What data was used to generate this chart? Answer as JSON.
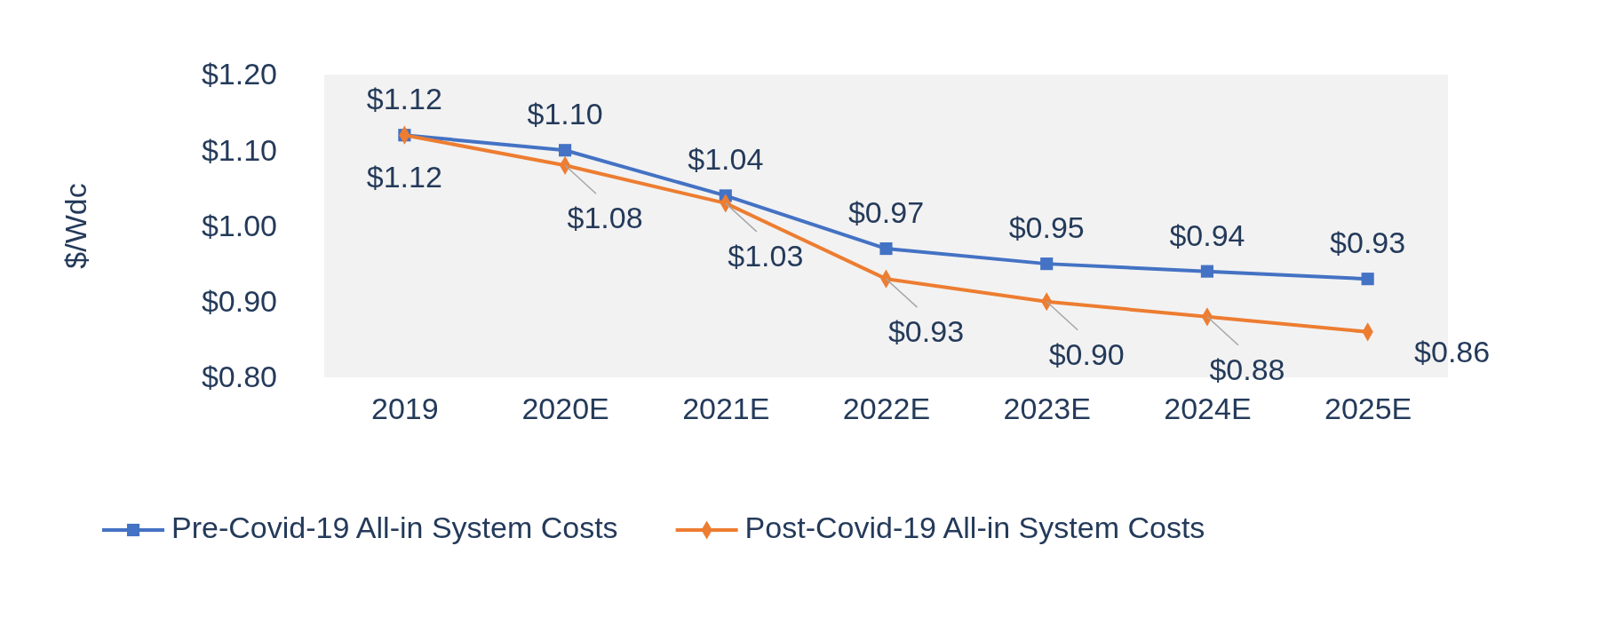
{
  "chart_data": {
    "type": "line",
    "ylabel": "$/Wdc",
    "categories": [
      "2019",
      "2020E",
      "2021E",
      "2022E",
      "2023E",
      "2024E",
      "2025E"
    ],
    "series": [
      {
        "name": "Pre-Covid-19 All-in System Costs",
        "color": "#4472c4",
        "marker": "square",
        "values": [
          1.12,
          1.1,
          1.04,
          0.97,
          0.95,
          0.94,
          0.93
        ],
        "value_labels": [
          "$1.12",
          "$1.10",
          "$1.04",
          "$0.97",
          "$0.95",
          "$0.94",
          "$0.93"
        ]
      },
      {
        "name": "Post-Covid-19 All-in System Costs",
        "color": "#ed7d31",
        "marker": "diamond",
        "values": [
          1.12,
          1.08,
          1.03,
          0.93,
          0.9,
          0.88,
          0.86
        ],
        "value_labels": [
          "$1.12",
          "$1.08",
          "$1.03",
          "$0.93",
          "$0.90",
          "$0.88",
          "$0.86"
        ]
      }
    ],
    "ylim": [
      0.8,
      1.2
    ],
    "yticks": [
      {
        "value": 0.8,
        "label": "$0.80"
      },
      {
        "value": 0.9,
        "label": "$0.90"
      },
      {
        "value": 1.0,
        "label": "$1.00"
      },
      {
        "value": 1.1,
        "label": "$1.10"
      },
      {
        "value": 1.2,
        "label": "$1.20"
      }
    ],
    "grid": false,
    "legend": "bottom",
    "line_style": "solid"
  }
}
